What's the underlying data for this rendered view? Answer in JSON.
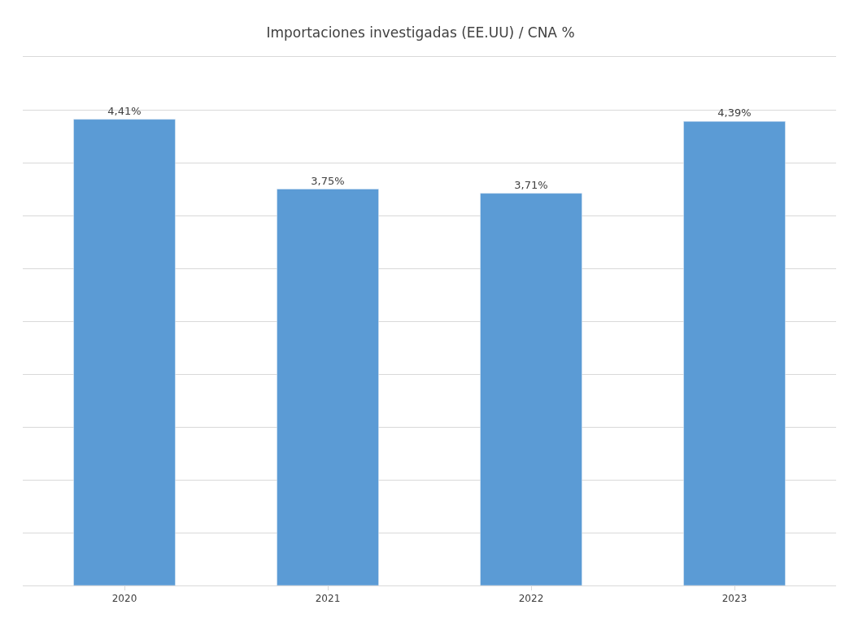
{
  "chart_data": {
    "type": "bar",
    "title": "Importaciones investigadas (EE.UU) / CNA %",
    "categories": [
      "2020",
      "2021",
      "2022",
      "2023"
    ],
    "values": [
      4.41,
      3.75,
      3.71,
      4.39
    ],
    "value_labels": [
      "4,41%",
      "3,75%",
      "3,71%",
      "4,39%"
    ],
    "color": "#5b9bd5",
    "ylim": [
      0,
      5
    ],
    "yticks": [
      {
        "value": 0,
        "label": null
      },
      {
        "value": 0.5,
        "label": null
      },
      {
        "value": 1,
        "label": null
      },
      {
        "value": 1.5,
        "label": null
      },
      {
        "value": 2,
        "label": null
      },
      {
        "value": 2.5,
        "label": null
      },
      {
        "value": 3,
        "label": null
      },
      {
        "value": 3.5,
        "label": null
      },
      {
        "value": 4,
        "label": null
      },
      {
        "value": 4.5,
        "label": null
      },
      {
        "value": 5,
        "label": null
      }
    ],
    "grid": "y",
    "tick_labels": "x",
    "legend": false
  }
}
